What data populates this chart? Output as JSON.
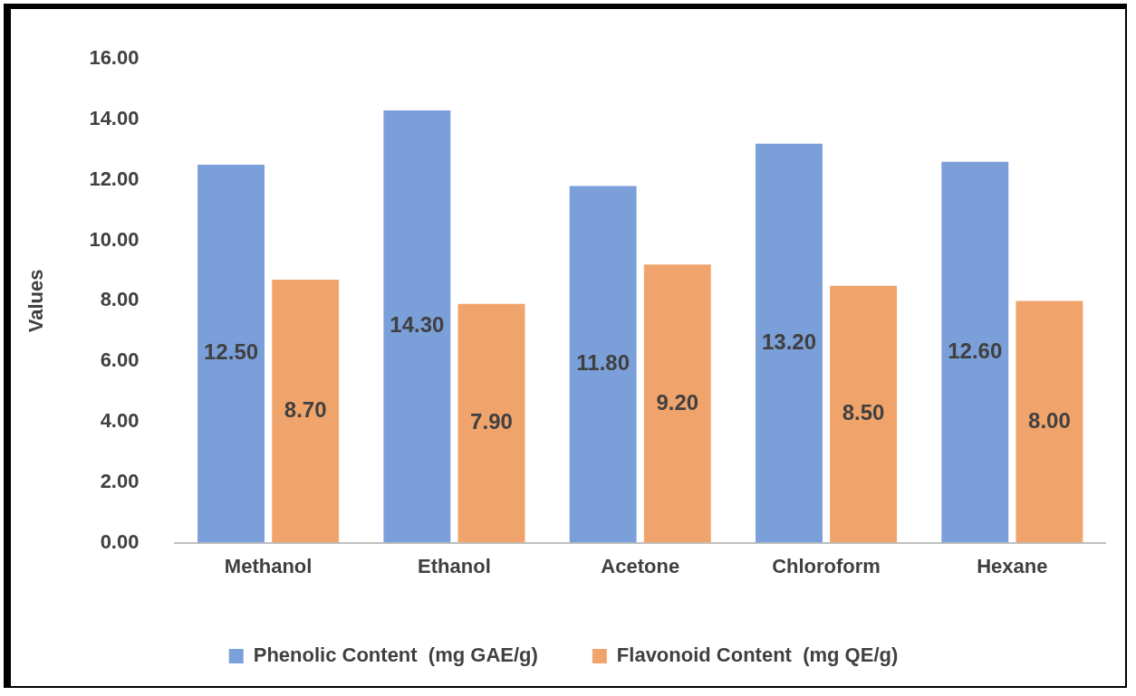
{
  "chart_data": {
    "type": "bar",
    "ylabel": "Values",
    "categories": [
      "Methanol",
      "Ethanol",
      "Acetone",
      "Chloroform",
      "Hexane"
    ],
    "series": [
      {
        "name": "Phenolic Content  (mg GAE/g)",
        "color": "#7b9fd8",
        "values": [
          12.5,
          14.3,
          11.8,
          13.2,
          12.6
        ],
        "value_labels": [
          "12.50",
          "14.30",
          "11.80",
          "13.20",
          "12.60"
        ]
      },
      {
        "name": "Flavonoid Content  (mg QE/g)",
        "color": "#f0a46c",
        "values": [
          8.7,
          7.9,
          9.2,
          8.5,
          8.0
        ],
        "value_labels": [
          "8.70",
          "7.90",
          "9.20",
          "8.50",
          "8.00"
        ]
      }
    ],
    "ylim": [
      0,
      16
    ],
    "yticks": [
      {
        "value": 0,
        "label": "0.00"
      },
      {
        "value": 2,
        "label": "2.00"
      },
      {
        "value": 4,
        "label": "4.00"
      },
      {
        "value": 6,
        "label": "6.00"
      },
      {
        "value": 8,
        "label": "8.00"
      },
      {
        "value": 10,
        "label": "10.00"
      },
      {
        "value": 12,
        "label": "12.00"
      },
      {
        "value": 14,
        "label": "14.00"
      },
      {
        "value": 16,
        "label": "16.00"
      }
    ],
    "grid": false,
    "legend": "bottom"
  }
}
